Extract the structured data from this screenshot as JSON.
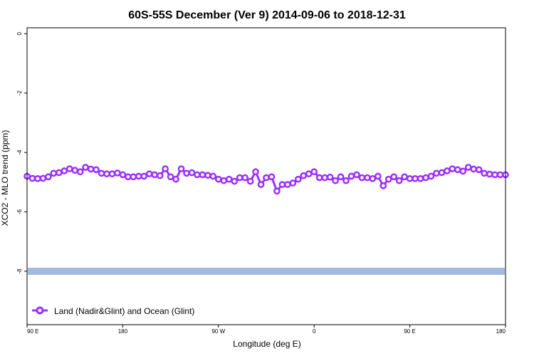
{
  "chart_data": {
    "type": "line",
    "title": "60S-55S December (Ver 9)   2014-09-06 to 2018-12-31",
    "xlabel": "Longitude (deg E)",
    "ylabel": "XCO2 - MLO trend (ppm)",
    "x_ticks": [
      "90 E",
      "180",
      "90 W",
      "0",
      "90 E",
      "180"
    ],
    "y_ticks": [
      "0",
      "-2",
      "-4",
      "-6",
      "-8"
    ],
    "ylim": [
      -9.8,
      0.2
    ],
    "grid": false,
    "legend_position": "bottom-left",
    "series": [
      {
        "name": "Land (Nadir&Glint) and Ocean (Glint)",
        "color": "#9b30ff",
        "x": [
          90,
          95,
          100,
          105,
          110,
          115,
          120,
          125,
          130,
          135,
          140,
          145,
          150,
          155,
          160,
          165,
          170,
          175,
          180,
          185,
          190,
          195,
          200,
          205,
          210,
          215,
          220,
          225,
          230,
          235,
          240,
          245,
          250,
          255,
          260,
          265,
          270,
          275,
          280,
          285,
          290,
          295,
          300,
          305,
          310,
          315,
          320,
          325,
          330,
          335,
          340,
          345,
          350,
          355,
          360,
          365,
          370,
          375,
          380,
          385,
          390,
          395,
          400,
          405,
          410,
          415,
          420,
          425,
          430,
          435,
          440,
          445,
          450,
          455,
          460,
          465,
          470,
          475,
          480,
          485,
          490,
          495,
          500,
          505,
          510,
          515,
          520,
          525,
          530,
          535,
          540
        ],
        "values": [
          -4.8,
          -4.87,
          -4.88,
          -4.87,
          -4.82,
          -4.7,
          -4.68,
          -4.62,
          -4.55,
          -4.6,
          -4.65,
          -4.5,
          -4.56,
          -4.58,
          -4.7,
          -4.72,
          -4.72,
          -4.69,
          -4.75,
          -4.82,
          -4.82,
          -4.8,
          -4.8,
          -4.72,
          -4.75,
          -4.78,
          -4.55,
          -4.82,
          -4.9,
          -4.55,
          -4.7,
          -4.68,
          -4.75,
          -4.75,
          -4.77,
          -4.8,
          -4.9,
          -4.95,
          -4.9,
          -4.97,
          -4.85,
          -4.85,
          -4.97,
          -4.65,
          -5.08,
          -4.85,
          -4.82,
          -5.3,
          -5.08,
          -5.08,
          -5.03,
          -4.9,
          -4.78,
          -4.72,
          -4.65,
          -4.85,
          -4.85,
          -4.83,
          -4.95,
          -4.82,
          -4.95,
          -4.8,
          -4.75,
          -4.85,
          -4.85,
          -4.88,
          -4.8,
          -5.12,
          -4.9,
          -4.82,
          -4.95,
          -4.82,
          -4.88,
          -4.88,
          -4.88,
          -4.85,
          -4.8,
          -4.7,
          -4.68,
          -4.62,
          -4.55,
          -4.58,
          -4.63,
          -4.5,
          -4.56,
          -4.58,
          -4.7,
          -4.73,
          -4.75,
          -4.75,
          -4.75
        ]
      },
      {
        "name": "",
        "color": "#a4b8e0",
        "type": "band",
        "values": [
          -8.0,
          -8.0
        ]
      }
    ]
  }
}
